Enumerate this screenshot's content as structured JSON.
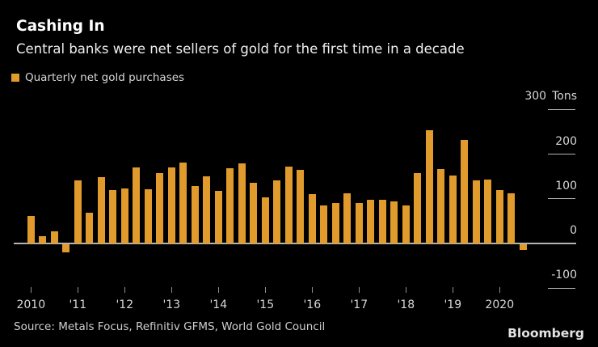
{
  "header": {
    "title": "Cashing In",
    "subtitle": "Central banks were net sellers of gold for the first time in a decade"
  },
  "legend": {
    "label": "Quarterly net gold purchases"
  },
  "footer": {
    "source": "Source: Metals Focus, Refinitiv GFMS, World Gold Council",
    "brand": "Bloomberg"
  },
  "colors": {
    "background": "#000000",
    "bar": "#E19B2D",
    "axis_text": "#d6d6d6",
    "tick_line": "#b3b3b3",
    "x_tick_line": "#8f8f8f"
  },
  "chart_data": {
    "type": "bar",
    "title": "Quarterly net gold purchases",
    "ylabel": "Tons",
    "unit": "Tons",
    "ylim": [
      -130,
      330
    ],
    "grid": false,
    "legend_position": "top-left",
    "y_ticks": [
      300,
      200,
      100,
      0,
      -100
    ],
    "x_ticks": [
      "2010",
      "'11",
      "'12",
      "'13",
      "'14",
      "'15",
      "'16",
      "'17",
      "'18",
      "'19",
      "2020"
    ],
    "categories": [
      "2010 Q1",
      "2010 Q2",
      "2010 Q3",
      "2010 Q4",
      "2011 Q1",
      "2011 Q2",
      "2011 Q3",
      "2011 Q4",
      "2012 Q1",
      "2012 Q2",
      "2012 Q3",
      "2012 Q4",
      "2013 Q1",
      "2013 Q2",
      "2013 Q3",
      "2013 Q4",
      "2014 Q1",
      "2014 Q2",
      "2014 Q3",
      "2014 Q4",
      "2015 Q1",
      "2015 Q2",
      "2015 Q3",
      "2015 Q4",
      "2016 Q1",
      "2016 Q2",
      "2016 Q3",
      "2016 Q4",
      "2017 Q1",
      "2017 Q2",
      "2017 Q3",
      "2017 Q4",
      "2018 Q1",
      "2018 Q2",
      "2018 Q3",
      "2018 Q4",
      "2019 Q1",
      "2019 Q2",
      "2019 Q3",
      "2019 Q4",
      "2020 Q1",
      "2020 Q2",
      "2020 Q3"
    ],
    "values": [
      62,
      16,
      27,
      -19,
      142,
      68,
      148,
      119,
      123,
      170,
      121,
      158,
      170,
      181,
      128,
      150,
      118,
      169,
      180,
      136,
      103,
      142,
      173,
      165,
      111,
      86,
      90,
      112,
      90,
      97,
      97,
      95,
      85,
      157,
      253,
      166,
      153,
      231,
      141,
      143,
      120,
      113,
      -13
    ]
  }
}
